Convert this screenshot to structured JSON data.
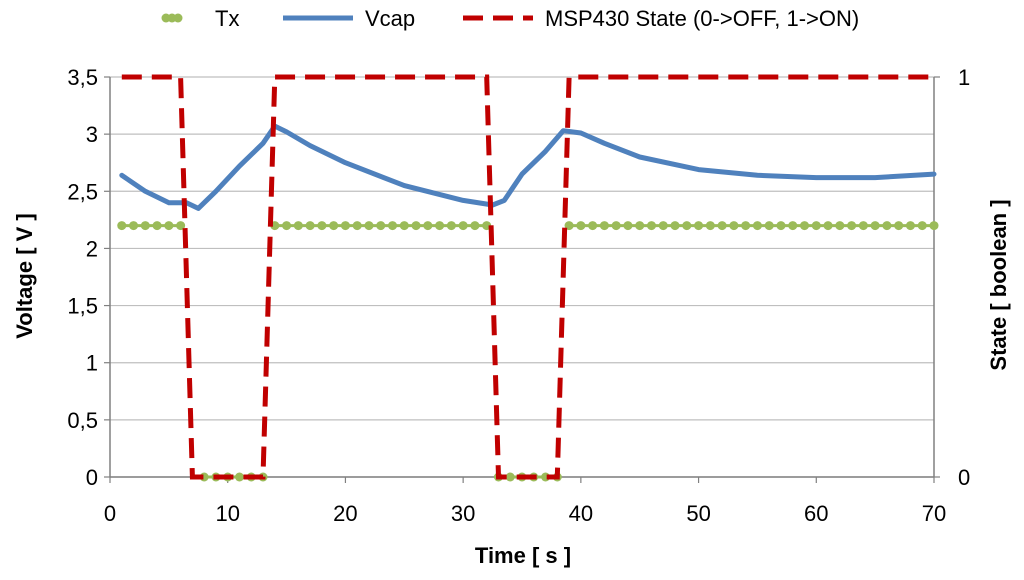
{
  "chart_data": {
    "type": "line",
    "xlabel": "Time [ s ]",
    "ylabel_left": "Voltage [ V ]",
    "ylabel_right": "State [ boolean ]",
    "xlim": [
      0,
      70
    ],
    "ylim_left": [
      0,
      3.5
    ],
    "ylim_right": [
      0,
      1
    ],
    "x_ticks": [
      "0",
      "10",
      "20",
      "30",
      "40",
      "50",
      "60",
      "70"
    ],
    "y_left_ticks": [
      "0",
      "0,5",
      "1",
      "1,5",
      "2",
      "2,5",
      "3",
      "3,5"
    ],
    "y_right_ticks": [
      "0",
      "1"
    ],
    "grid": "horizontal",
    "legend_position": "top",
    "colors": {
      "tx": "#9BBB59",
      "vcap": "#4F81BD",
      "state": "#C00000",
      "grid": "#BFBFBF"
    },
    "series": [
      {
        "key": "tx",
        "name": "Tx",
        "style": "dotted",
        "axis": "left",
        "segments": [
          {
            "x": [
              1,
              2,
              3,
              4,
              5,
              6
            ],
            "y": [
              2.2,
              2.2,
              2.2,
              2.2,
              2.2,
              2.2
            ]
          },
          {
            "x": [
              8,
              9,
              10,
              11,
              12,
              13
            ],
            "y": [
              0,
              0,
              0,
              0,
              0,
              0
            ]
          },
          {
            "x": [
              14,
              15,
              16,
              17,
              18,
              19,
              20,
              21,
              22,
              23,
              24,
              25,
              26,
              27,
              28,
              29,
              30,
              31,
              32
            ],
            "y": [
              2.2,
              2.2,
              2.2,
              2.2,
              2.2,
              2.2,
              2.2,
              2.2,
              2.2,
              2.2,
              2.2,
              2.2,
              2.2,
              2.2,
              2.2,
              2.2,
              2.2,
              2.2,
              2.2
            ]
          },
          {
            "x": [
              33,
              34,
              35,
              36,
              37,
              38
            ],
            "y": [
              0,
              0,
              0,
              0,
              0,
              0
            ]
          },
          {
            "x": [
              39,
              40,
              41,
              42,
              43,
              44,
              45,
              46,
              47,
              48,
              49,
              50,
              51,
              52,
              53,
              54,
              55,
              56,
              57,
              58,
              59,
              60,
              61,
              62,
              63,
              64,
              65,
              66,
              67,
              68,
              69,
              70
            ],
            "y": [
              2.2,
              2.2,
              2.2,
              2.2,
              2.2,
              2.2,
              2.2,
              2.2,
              2.2,
              2.2,
              2.2,
              2.2,
              2.2,
              2.2,
              2.2,
              2.2,
              2.2,
              2.2,
              2.2,
              2.2,
              2.2,
              2.2,
              2.2,
              2.2,
              2.2,
              2.2,
              2.2,
              2.2,
              2.2,
              2.2,
              2.2,
              2.2
            ]
          }
        ]
      },
      {
        "key": "vcap",
        "name": "Vcap",
        "style": "solid",
        "axis": "left",
        "segments": [
          {
            "x": [
              1,
              3,
              5,
              6.5,
              7.5,
              9,
              11,
              13,
              14,
              15,
              17,
              20,
              25,
              30,
              32.5,
              33.5,
              35,
              37,
              38.5,
              40,
              42,
              45,
              50,
              55,
              60,
              65,
              70
            ],
            "y": [
              2.64,
              2.5,
              2.4,
              2.4,
              2.35,
              2.5,
              2.72,
              2.92,
              3.07,
              3.02,
              2.9,
              2.75,
              2.55,
              2.42,
              2.38,
              2.42,
              2.65,
              2.85,
              3.03,
              3.01,
              2.92,
              2.8,
              2.69,
              2.64,
              2.62,
              2.62,
              2.65
            ]
          }
        ]
      },
      {
        "key": "state",
        "name": "MSP430 State (0->OFF, 1->ON)",
        "style": "dashed",
        "axis": "right",
        "segments": [
          {
            "x": [
              1,
              6,
              7,
              13,
              14,
              32,
              33,
              38,
              39,
              70
            ],
            "y": [
              1,
              1,
              0,
              0,
              1,
              1,
              0,
              0,
              1,
              1
            ]
          }
        ]
      }
    ]
  }
}
